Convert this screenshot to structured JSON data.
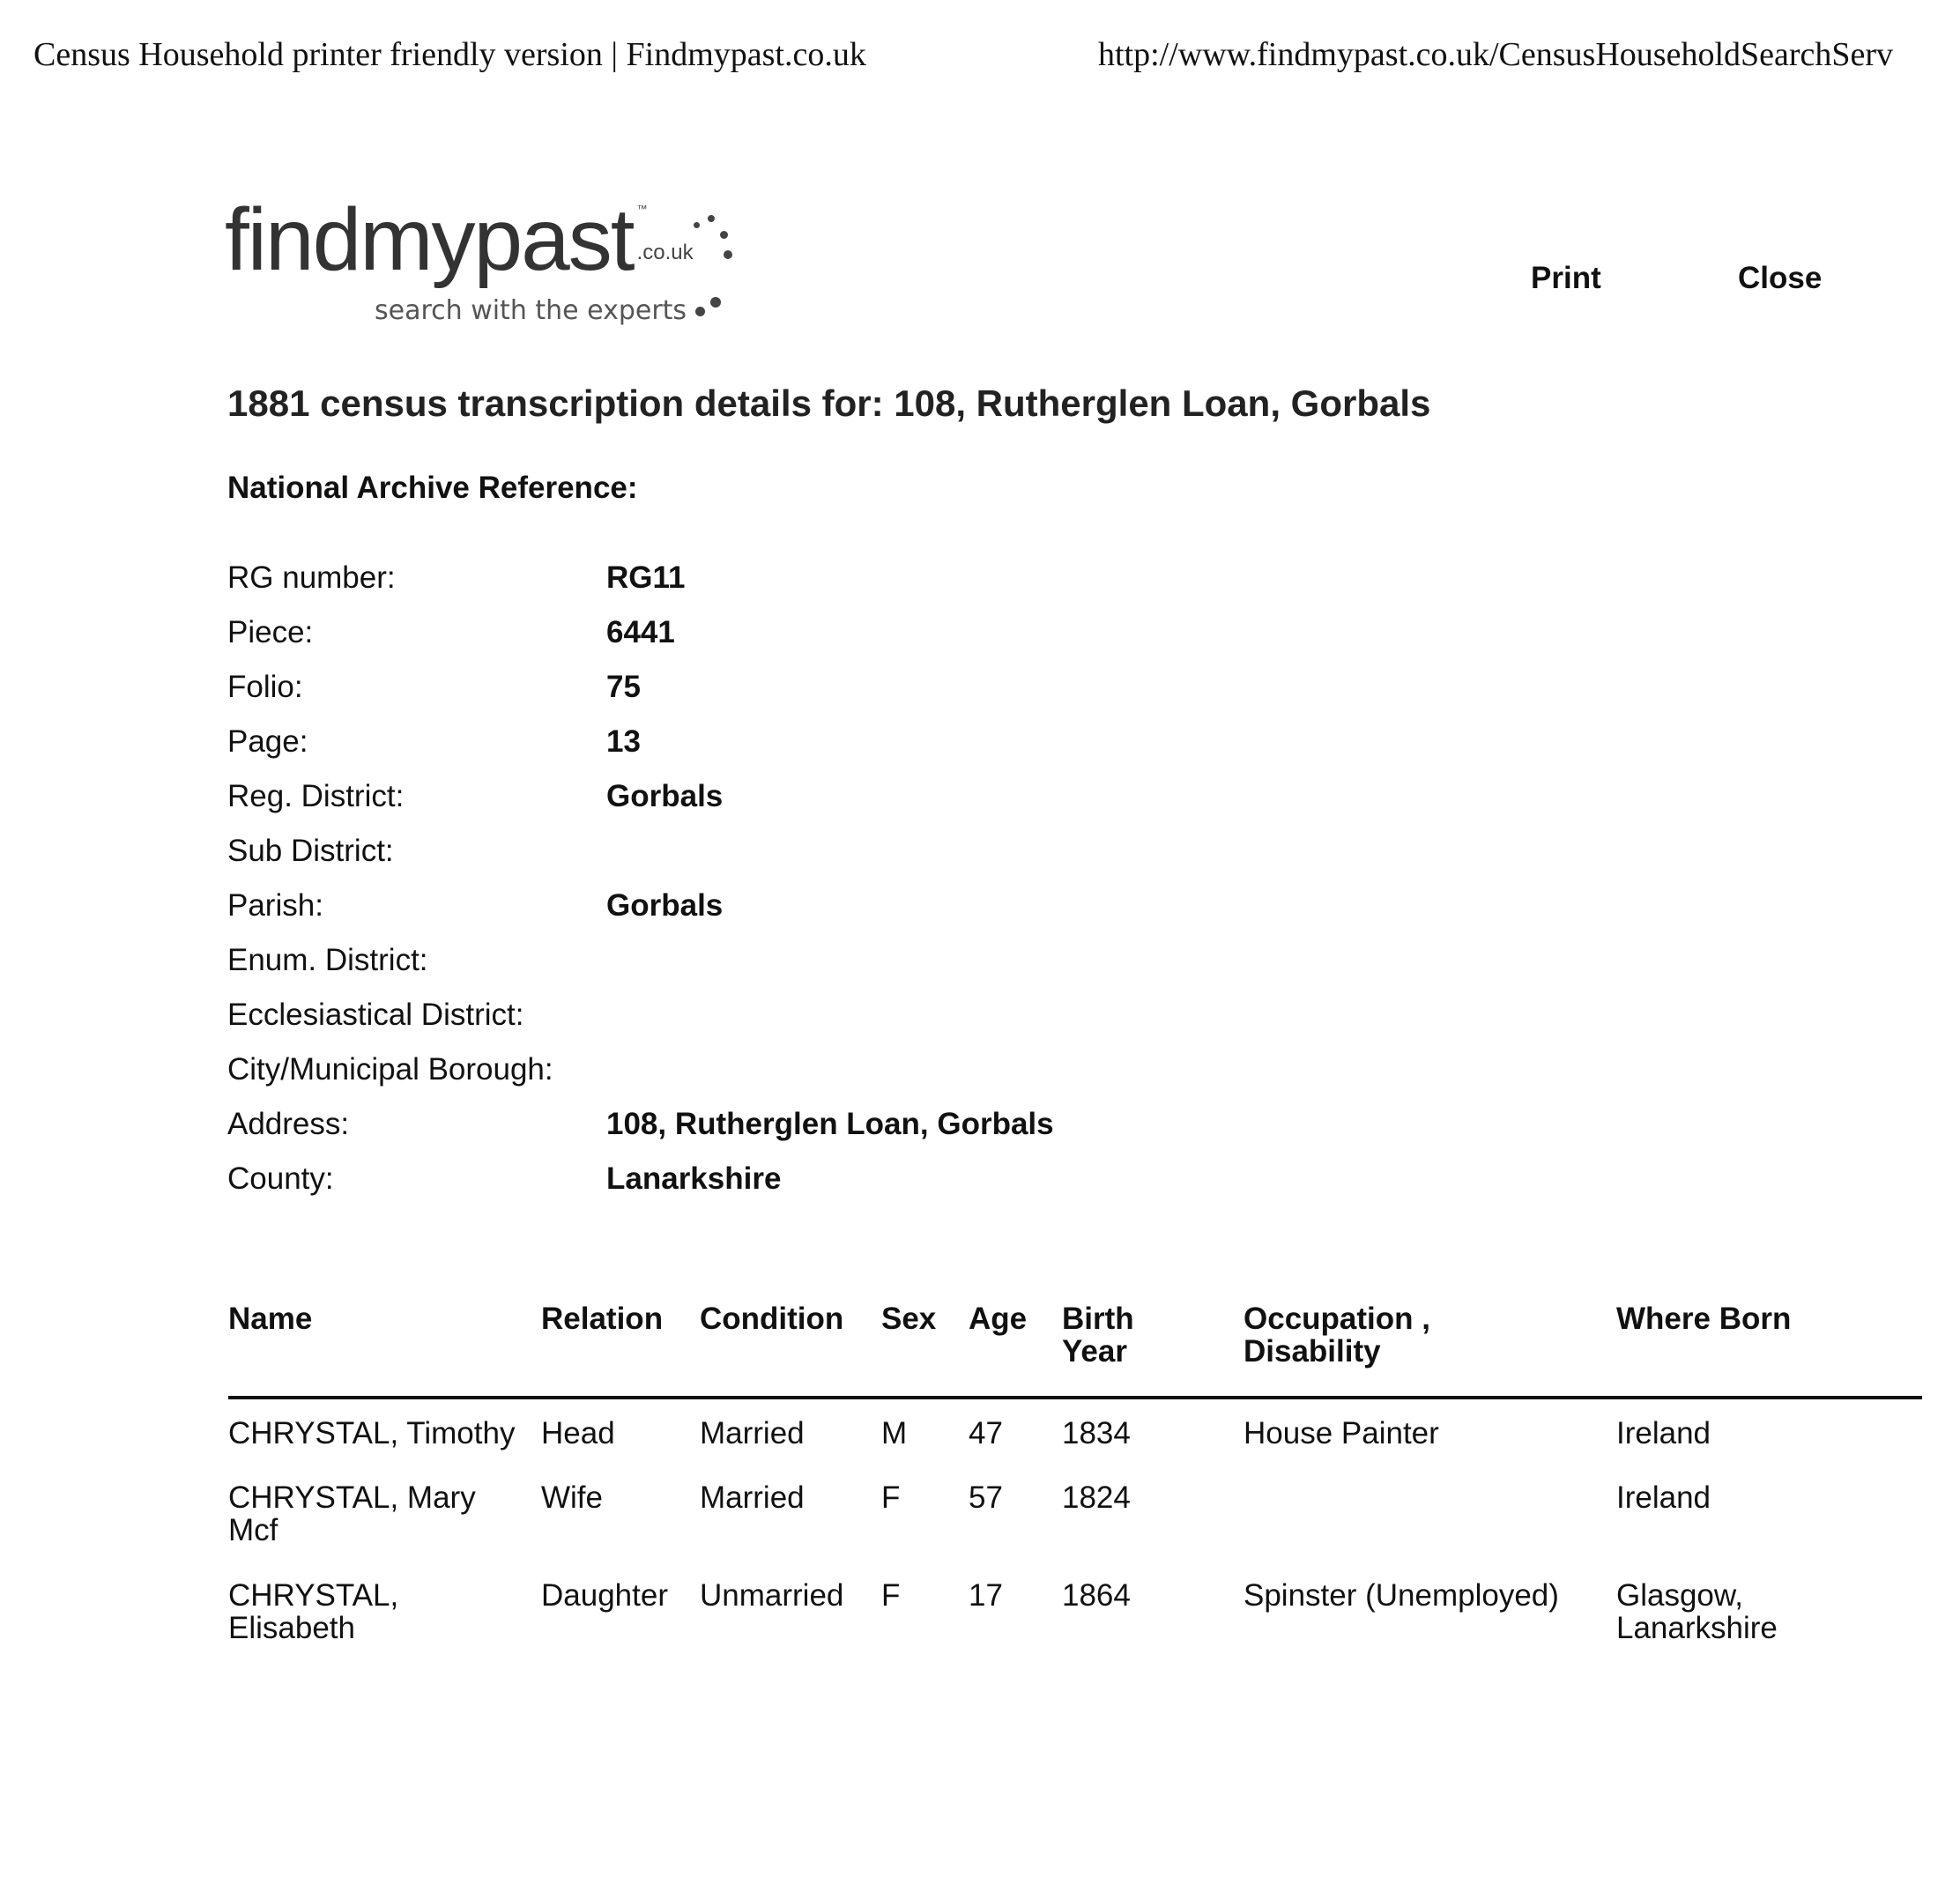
{
  "browser_header": {
    "page_title": "Census Household printer friendly version | Findmypast.co.uk",
    "url": "http://www.findmypast.co.uk/CensusHouseholdSearchServ"
  },
  "logo": {
    "name": "findmypast",
    "suffix": ".co.uk",
    "tagline": "search with the experts"
  },
  "actions": {
    "print": "Print",
    "close": "Close"
  },
  "title": "1881 census transcription details for:  108, Rutherglen Loan, Gorbals",
  "reference": {
    "heading": "National Archive Reference:",
    "rows": [
      {
        "label": "RG number:",
        "value": "RG11"
      },
      {
        "label": "Piece:",
        "value": "6441"
      },
      {
        "label": "Folio:",
        "value": "75"
      },
      {
        "label": "Page:",
        "value": "13"
      },
      {
        "label": "Reg. District:",
        "value": "Gorbals"
      },
      {
        "label": "Sub District:",
        "value": ""
      },
      {
        "label": "Parish:",
        "value": "Gorbals"
      },
      {
        "label": "Enum. District:",
        "value": ""
      },
      {
        "label": "Ecclesiastical District:",
        "value": ""
      },
      {
        "label": "City/Municipal Borough:",
        "value": ""
      },
      {
        "label": "Address:",
        "value": "108, Rutherglen Loan, Gorbals"
      },
      {
        "label": "County:",
        "value": "Lanarkshire"
      }
    ]
  },
  "household": {
    "columns": [
      "Name",
      "Relation",
      "Condition",
      "Sex",
      "Age",
      "Birth Year",
      "Occupation , Disability",
      "Where Born"
    ],
    "rows": [
      [
        "CHRYSTAL, Timothy",
        "Head",
        "Married",
        "M",
        "47",
        "1834",
        "House Painter",
        "Ireland"
      ],
      [
        "CHRYSTAL, Mary Mcf",
        "Wife",
        "Married",
        "F",
        "57",
        "1824",
        "",
        "Ireland"
      ],
      [
        "CHRYSTAL, Elisabeth",
        "Daughter",
        "Unmarried",
        "F",
        "17",
        "1864",
        "Spinster (Unemployed)",
        "Glasgow, Lanarkshire"
      ]
    ]
  }
}
